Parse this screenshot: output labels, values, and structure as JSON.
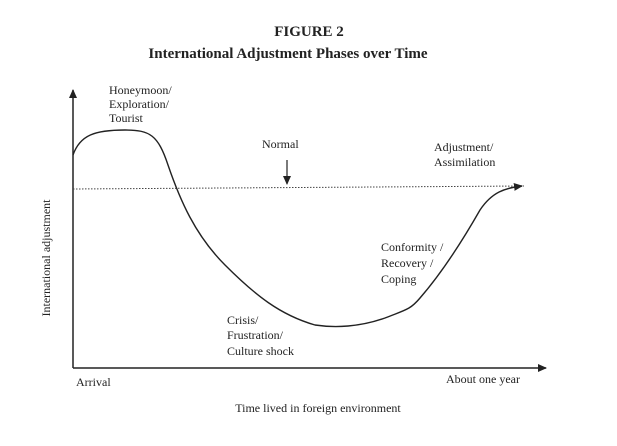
{
  "header": {
    "figure": "FIGURE 2",
    "title": "International Adjustment Phases over Time"
  },
  "axes": {
    "y_label": "International adjustment",
    "x_label": "Time lived in foreign environment",
    "x_start": "Arrival",
    "x_end": "About one year"
  },
  "annotations": {
    "honeymoon": [
      "Honeymoon/",
      "Exploration/",
      "Tourist"
    ],
    "normal": "Normal",
    "adjustment": [
      "Adjustment/",
      "Assimilation"
    ],
    "conformity": [
      "Conformity /",
      "Recovery /",
      "Coping"
    ],
    "crisis": [
      "Crisis/",
      "Frustration/",
      "Culture shock"
    ]
  }
}
